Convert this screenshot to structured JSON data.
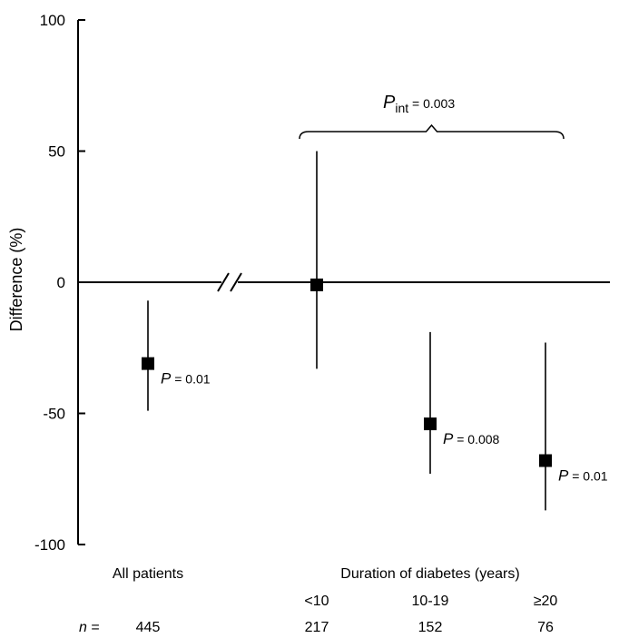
{
  "chart_data": {
    "type": "scatter",
    "ylabel": "Difference (%)",
    "ylim": [
      -100,
      100
    ],
    "yticks": [
      "100",
      "50",
      "0",
      "-50",
      "-100"
    ],
    "grid": false,
    "groups": [
      {
        "label": "All patients"
      },
      {
        "label": "Duration of diabetes (years)"
      }
    ],
    "categories": [
      "All patients",
      "<10",
      "10-19",
      "≥20"
    ],
    "points": [
      {
        "category": "All patients",
        "y": -31,
        "low": -49,
        "high": -7,
        "p_label": "P",
        "p_value": "= 0.01"
      },
      {
        "category": "<10",
        "y": -1,
        "low": -33,
        "high": 50,
        "p_label": "",
        "p_value": ""
      },
      {
        "category": "10-19",
        "y": -54,
        "low": -73,
        "high": -19,
        "p_label": "P",
        "p_value": "= 0.008"
      },
      {
        "category": "≥20",
        "y": -68,
        "low": -87,
        "high": -23,
        "p_label": "P",
        "p_value": "= 0.01"
      }
    ],
    "n_prefix": "n =",
    "n_values": [
      "445",
      "217",
      "152",
      "76"
    ],
    "interaction": {
      "p_label": "P",
      "p_sub": "int",
      "p_value": "= 0.003"
    }
  }
}
